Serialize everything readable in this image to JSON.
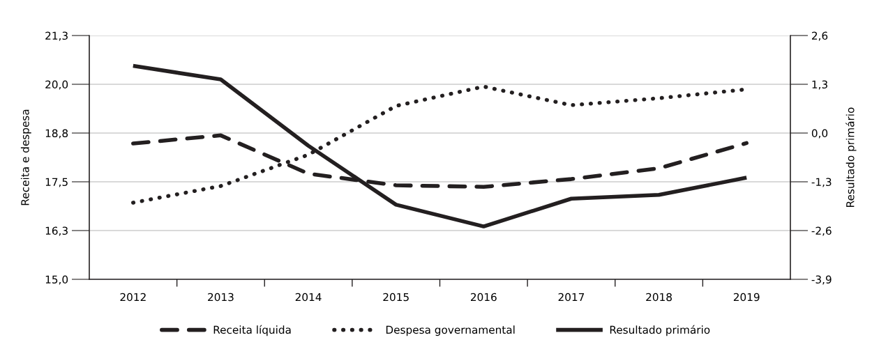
{
  "chart_data": {
    "type": "line",
    "categories": [
      "2012",
      "2013",
      "2014",
      "2015",
      "2016",
      "2017",
      "2018",
      "2019"
    ],
    "ylabel": "Receita e despesa",
    "y2label": "Resultado primário",
    "ylim": [
      15.0,
      21.3
    ],
    "yticks": [
      {
        "value": 15.0,
        "label": "15,0"
      },
      {
        "value": 16.26,
        "label": "16,3"
      },
      {
        "value": 17.52,
        "label": "17,5"
      },
      {
        "value": 18.78,
        "label": "18,8"
      },
      {
        "value": 20.04,
        "label": "20,0"
      },
      {
        "value": 21.3,
        "label": "21,3"
      }
    ],
    "y2lim": [
      -3.9,
      2.6
    ],
    "y2ticks": [
      {
        "value": -3.9,
        "label": "-3,9"
      },
      {
        "value": -2.6,
        "label": "-2,6"
      },
      {
        "value": -1.3,
        "label": "-1,3"
      },
      {
        "value": 0.0,
        "label": "0,0"
      },
      {
        "value": 1.3,
        "label": "1,3"
      },
      {
        "value": 2.6,
        "label": "2,6"
      }
    ],
    "grid": "y",
    "legend": "bottom",
    "series": [
      {
        "name": "Receita líquida",
        "color": "#231f20",
        "line_style": "dashed",
        "values": [
          18.51,
          18.72,
          17.73,
          17.43,
          17.39,
          17.59,
          17.87,
          18.52
        ]
      },
      {
        "name": "Despesa governamental",
        "color": "#231f20",
        "line_style": "dotted",
        "values": [
          16.98,
          17.41,
          18.22,
          19.48,
          19.98,
          19.5,
          19.68,
          19.91
        ]
      },
      {
        "name": "Resultado primário",
        "color": "#231f20",
        "line_style": "solid",
        "axis": "y2",
        "values": [
          1.79,
          1.43,
          -0.34,
          -1.91,
          -2.49,
          -1.75,
          -1.65,
          -1.19
        ]
      }
    ]
  }
}
